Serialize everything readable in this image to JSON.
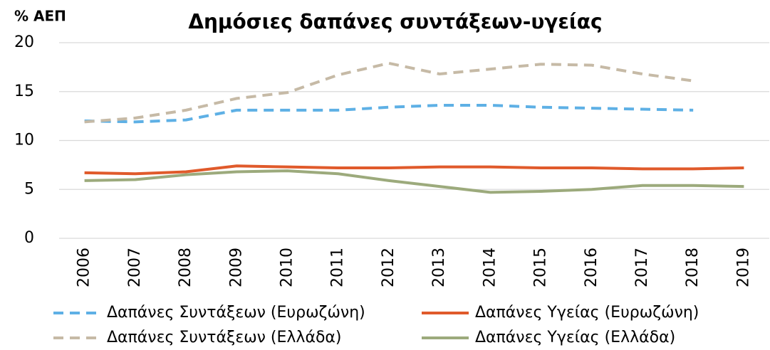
{
  "chart_data": {
    "type": "line",
    "title": "Δημόσιες δαπάνες συντάξεων-υγείας",
    "y_label": "% ΑΕΠ",
    "categories": [
      "2006",
      "2007",
      "2008",
      "2009",
      "2010",
      "2011",
      "2012",
      "2013",
      "2014",
      "2015",
      "2016",
      "2017",
      "2018",
      "2019"
    ],
    "series": [
      {
        "name": "Δαπάνες Συντάξεων (Ευρωζώνη)",
        "color": "#5eb0e5",
        "dashed": true,
        "values": [
          12.0,
          11.9,
          12.1,
          13.1,
          13.1,
          13.1,
          13.4,
          13.6,
          13.6,
          13.4,
          13.3,
          13.2,
          13.1,
          null
        ]
      },
      {
        "name": "Δαπάνες Υγείας (Ευρωζώνη)",
        "color": "#e05a2b",
        "dashed": false,
        "values": [
          6.7,
          6.6,
          6.8,
          7.4,
          7.3,
          7.2,
          7.2,
          7.3,
          7.3,
          7.2,
          7.2,
          7.1,
          7.1,
          7.2
        ]
      },
      {
        "name": "Δαπάνες Συντάξεων (Ελλάδα)",
        "color": "#c6baa6",
        "dashed": true,
        "values": [
          11.9,
          12.3,
          13.1,
          14.3,
          14.9,
          16.7,
          17.9,
          16.8,
          17.3,
          17.8,
          17.7,
          16.8,
          16.1,
          null
        ]
      },
      {
        "name": "Δαπάνες Υγείας (Ελλάδα)",
        "color": "#9caa7c",
        "dashed": false,
        "values": [
          5.9,
          6.0,
          6.5,
          6.8,
          6.9,
          6.6,
          5.9,
          5.3,
          4.7,
          4.8,
          5.0,
          5.4,
          5.4,
          5.3
        ]
      }
    ],
    "ylim": [
      0,
      20
    ],
    "yticks": [
      0,
      5,
      10,
      15,
      20
    ],
    "grid": true
  }
}
